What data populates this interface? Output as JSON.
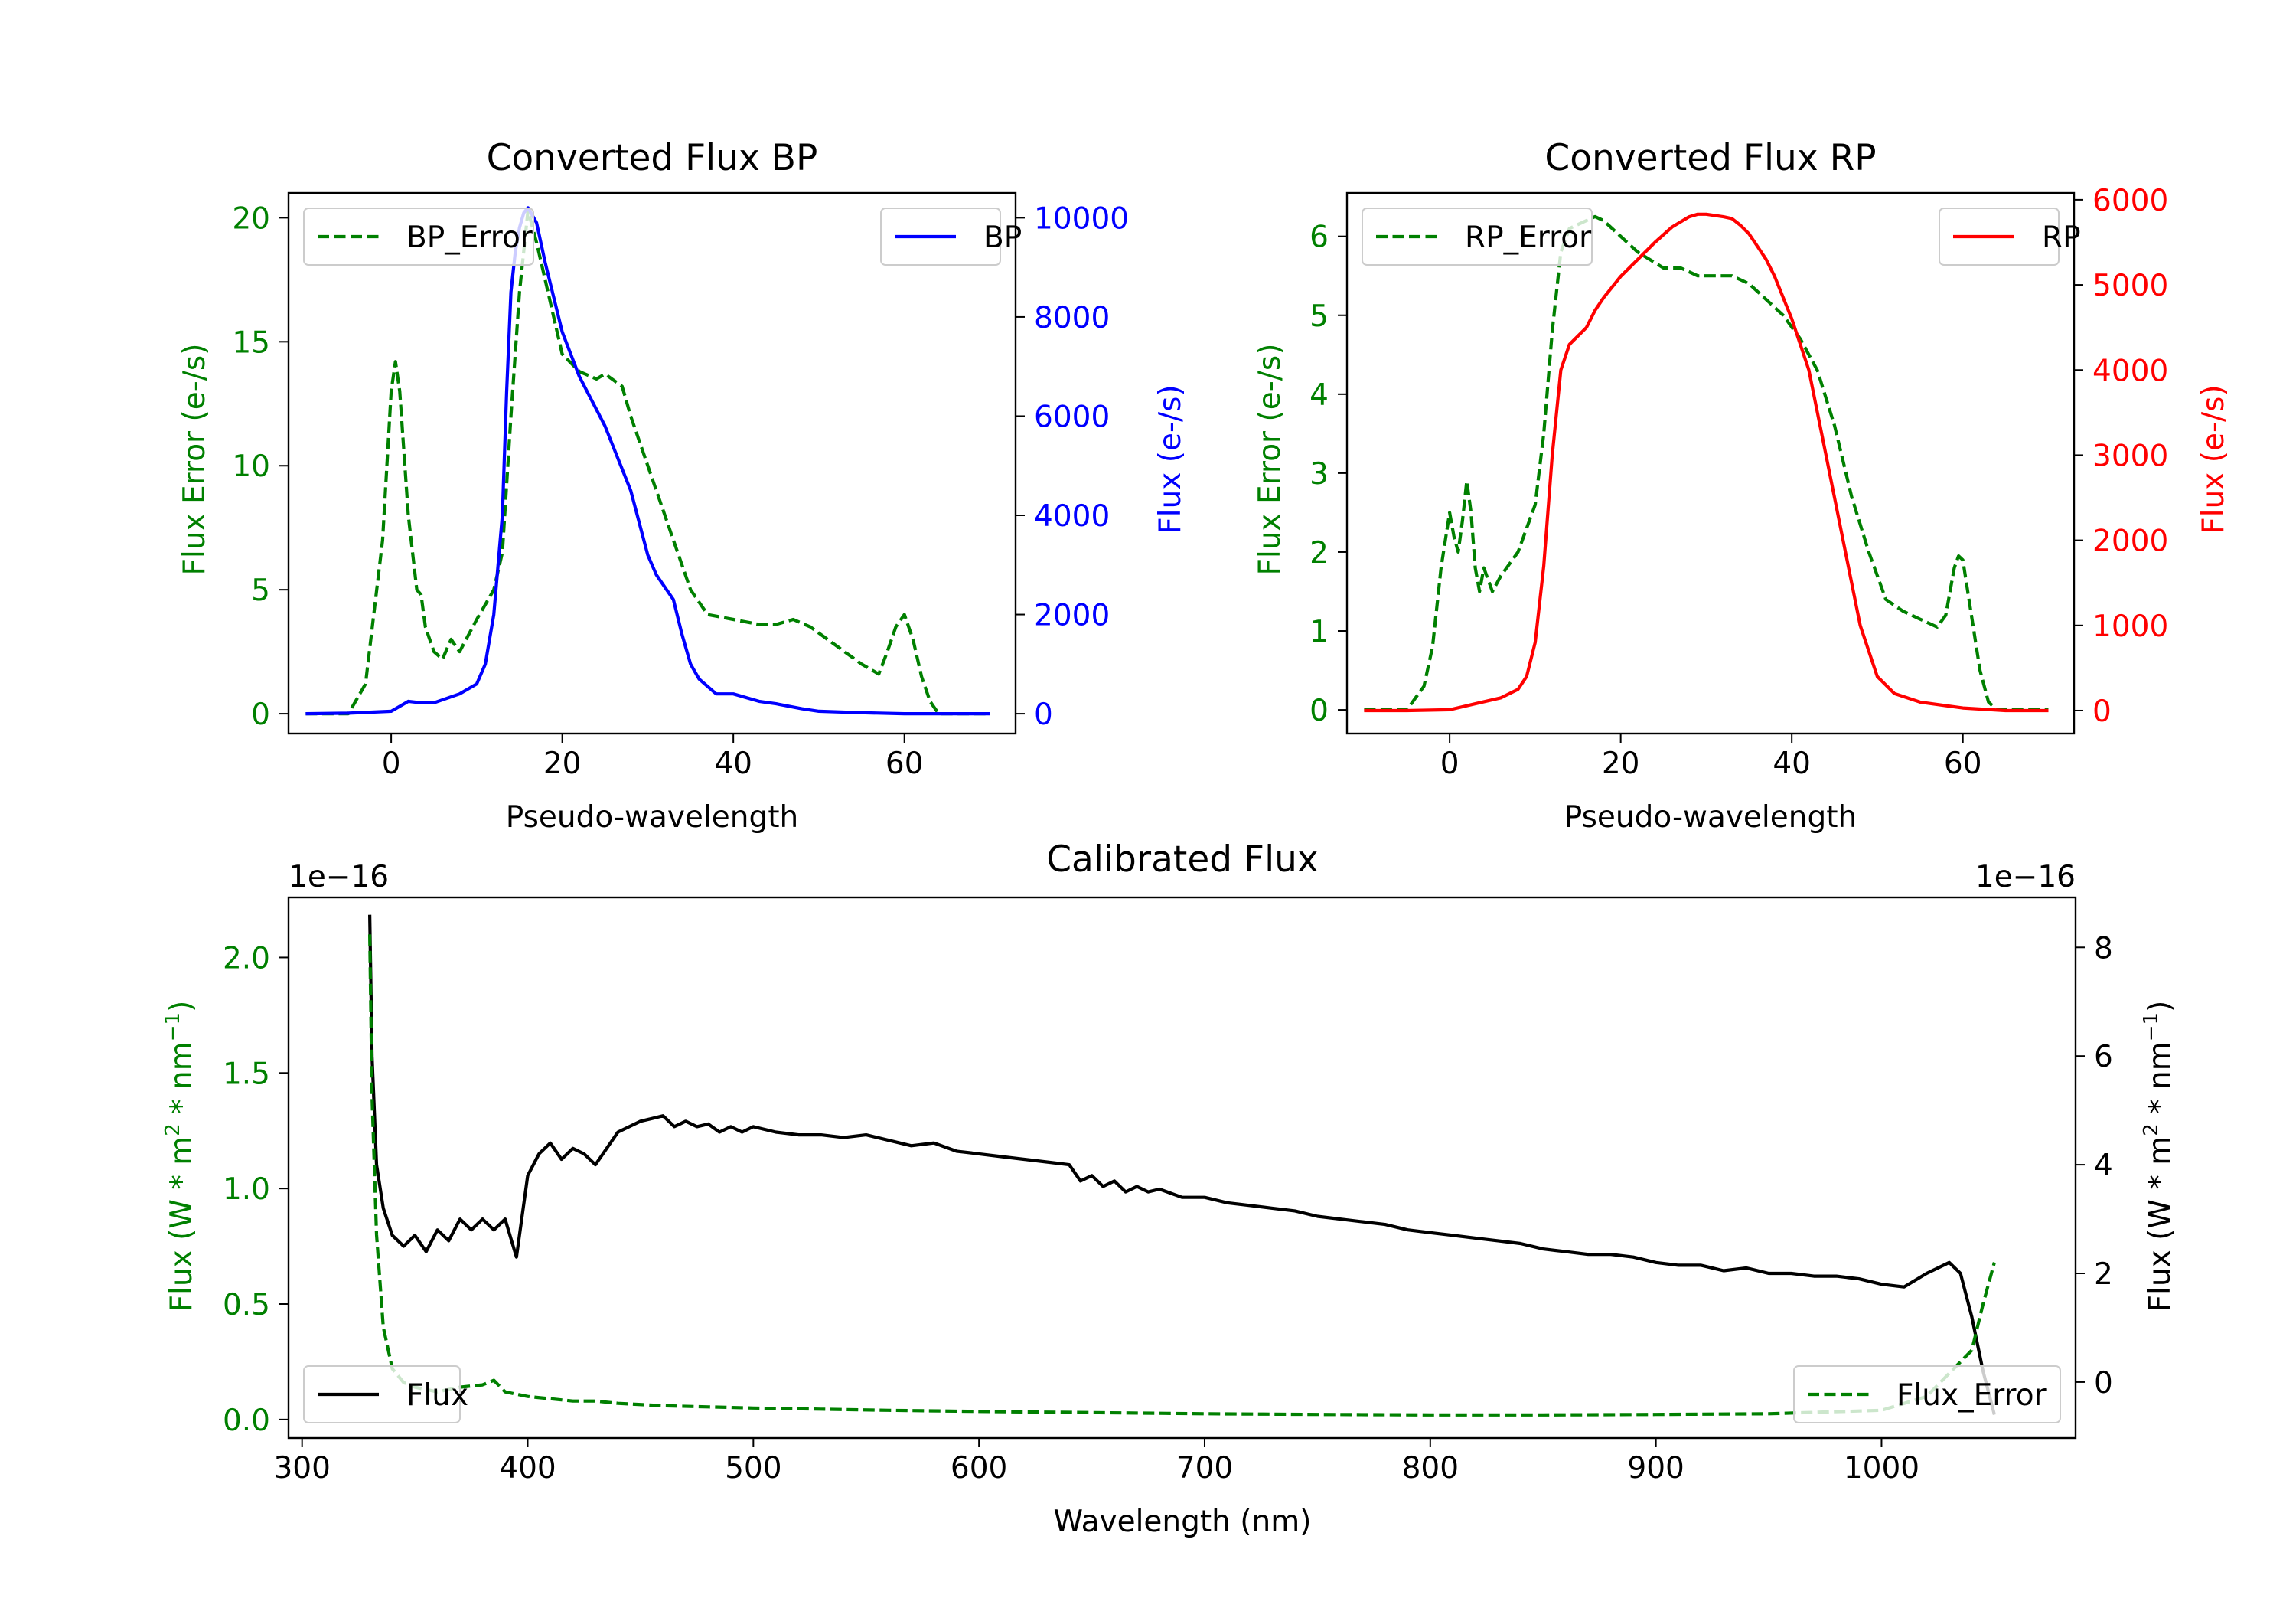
{
  "colors": {
    "green": "#008000",
    "blue": "#0000ff",
    "red": "#ff0000",
    "black": "#000000"
  },
  "chart_data": [
    {
      "type": "line",
      "title": "Converted Flux BP",
      "xlabel": "Pseudo-wavelength",
      "xlim": [
        -12,
        73
      ],
      "xticks": [
        0,
        20,
        40,
        60
      ],
      "left_axis": {
        "label": "Flux Error (e-/s)",
        "color": "#008000",
        "ylim": [
          -0.8,
          21.0
        ],
        "ticks": [
          0,
          5,
          10,
          15,
          20
        ]
      },
      "right_axis": {
        "label": "Flux (e-/s)",
        "color": "#0000ff",
        "ylim": [
          -400,
          10500
        ],
        "ticks": [
          0,
          2000,
          4000,
          6000,
          8000,
          10000
        ]
      },
      "series": [
        {
          "name": "BP_Error",
          "axis": "left",
          "style": "dashed",
          "color": "#008000",
          "x": [
            -10,
            -5,
            -3,
            -1,
            0,
            0.5,
            1,
            2,
            3,
            3.5,
            4,
            5,
            6,
            7,
            8,
            10,
            11,
            12,
            13,
            14,
            15,
            16,
            17,
            18,
            20,
            22,
            24,
            25,
            27,
            28,
            30,
            33,
            35,
            37,
            40,
            43,
            45,
            47,
            49,
            51,
            53,
            55,
            57,
            58,
            59,
            60,
            61,
            62,
            63,
            64,
            70
          ],
          "y": [
            0,
            0,
            1.2,
            7,
            13,
            14.2,
            13,
            8,
            5,
            4.8,
            3.5,
            2.5,
            2.2,
            3,
            2.5,
            3.8,
            4.4,
            5,
            6.5,
            12,
            17,
            20.3,
            19,
            17.5,
            14.5,
            13.8,
            13.5,
            13.7,
            13.2,
            12,
            10,
            7,
            5,
            4,
            3.8,
            3.6,
            3.6,
            3.8,
            3.5,
            3,
            2.5,
            2,
            1.6,
            2.5,
            3.5,
            4,
            3,
            1.5,
            0.5,
            0,
            0
          ]
        },
        {
          "name": "BP",
          "axis": "right",
          "style": "solid",
          "color": "#0000ff",
          "x": [
            -10,
            -5,
            0,
            1,
            2,
            3,
            5,
            8,
            10,
            11,
            12,
            13,
            13.5,
            14,
            14.5,
            15,
            15.5,
            16,
            17,
            18,
            20,
            22,
            25,
            28,
            30,
            31,
            33,
            34,
            35,
            36,
            38,
            40,
            43,
            45,
            48,
            50,
            55,
            60,
            65,
            70
          ],
          "y": [
            0,
            10,
            50,
            150,
            250,
            230,
            220,
            400,
            600,
            1000,
            2000,
            4000,
            6500,
            8500,
            9300,
            9800,
            10100,
            10200,
            9900,
            9100,
            7700,
            6800,
            5800,
            4500,
            3200,
            2800,
            2300,
            1600,
            1000,
            700,
            400,
            400,
            250,
            200,
            100,
            50,
            20,
            0,
            0,
            0
          ]
        }
      ],
      "legends": [
        {
          "entries": [
            "BP_Error"
          ],
          "loc": "upper left"
        },
        {
          "entries": [
            "BP"
          ],
          "loc": "upper right"
        }
      ]
    },
    {
      "type": "line",
      "title": "Converted Flux RP",
      "xlabel": "Pseudo-wavelength",
      "xlim": [
        -12,
        73
      ],
      "xticks": [
        0,
        20,
        40,
        60
      ],
      "left_axis": {
        "label": "Flux Error (e-/s)",
        "color": "#008000",
        "ylim": [
          -0.3,
          6.55
        ],
        "ticks": [
          0,
          1,
          2,
          3,
          4,
          5,
          6
        ]
      },
      "right_axis": {
        "label": "Flux (e-/s)",
        "color": "#ff0000",
        "ylim": [
          -270,
          6080
        ],
        "ticks": [
          0,
          1000,
          2000,
          3000,
          4000,
          5000,
          6000
        ]
      },
      "series": [
        {
          "name": "RP_Error",
          "axis": "left",
          "style": "dashed",
          "color": "#008000",
          "x": [
            -10,
            -5,
            -3,
            -2,
            -1,
            0,
            0.5,
            1,
            1.5,
            2,
            2.5,
            3,
            3.5,
            4,
            5,
            6,
            8,
            10,
            11,
            12,
            13,
            14,
            15,
            17,
            18,
            20,
            22,
            25,
            27,
            29,
            31,
            33,
            35,
            37,
            39,
            41,
            43,
            45,
            47,
            49,
            51,
            53,
            55,
            57,
            58,
            59,
            59.5,
            60,
            61,
            62,
            63,
            64,
            70
          ],
          "y": [
            0,
            0,
            0.3,
            0.8,
            1.8,
            2.5,
            2.2,
            2.0,
            2.4,
            2.9,
            2.5,
            1.8,
            1.5,
            1.8,
            1.5,
            1.7,
            2.0,
            2.6,
            3.5,
            4.8,
            5.8,
            6.1,
            6.15,
            6.25,
            6.2,
            6.0,
            5.8,
            5.6,
            5.6,
            5.5,
            5.5,
            5.5,
            5.4,
            5.2,
            5.0,
            4.7,
            4.3,
            3.6,
            2.7,
            2.0,
            1.4,
            1.25,
            1.15,
            1.05,
            1.2,
            1.8,
            1.95,
            1.9,
            1.2,
            0.5,
            0.1,
            0,
            0
          ]
        },
        {
          "name": "RP",
          "axis": "right",
          "style": "solid",
          "color": "#ff0000",
          "x": [
            -10,
            -5,
            0,
            3,
            6,
            8,
            9,
            10,
            11,
            12,
            13,
            14,
            15,
            16,
            17,
            18,
            20,
            22,
            24,
            26,
            28,
            29,
            30,
            32,
            33,
            34,
            35,
            36,
            37,
            38,
            40,
            42,
            44,
            46,
            48,
            50,
            52,
            55,
            60,
            65,
            70
          ],
          "y": [
            0,
            0,
            10,
            80,
            150,
            250,
            400,
            800,
            1700,
            3000,
            4000,
            4300,
            4400,
            4500,
            4700,
            4850,
            5100,
            5300,
            5500,
            5680,
            5800,
            5830,
            5830,
            5800,
            5780,
            5700,
            5600,
            5450,
            5300,
            5100,
            4600,
            4000,
            3000,
            2000,
            1000,
            400,
            200,
            100,
            30,
            0,
            0
          ]
        }
      ],
      "legends": [
        {
          "entries": [
            "RP_Error"
          ],
          "loc": "upper left"
        },
        {
          "entries": [
            "RP"
          ],
          "loc": "upper right"
        }
      ]
    },
    {
      "type": "line",
      "title": "Calibrated Flux",
      "xlabel": "Wavelength (nm)",
      "xlim": [
        294,
        1086
      ],
      "xticks": [
        300,
        400,
        500,
        600,
        700,
        800,
        900,
        1000
      ],
      "left_axis": {
        "label": "Flux (W * m$^2$ * nm$^{-1}$)",
        "color": "#008000",
        "ylim": [
          -0.08,
          2.26
        ],
        "ticks": [
          "0.0",
          "0.5",
          "1.0",
          "1.5",
          "2.0"
        ],
        "offset_text": "1e−16"
      },
      "right_axis": {
        "label": "Flux (W * m$^2$ * nm$^{-1}$)",
        "color": "#000000",
        "ylim": [
          -1.03,
          8.92
        ],
        "ticks": [
          0,
          2,
          4,
          6,
          8
        ],
        "offset_text": "1e−16"
      },
      "series": [
        {
          "name": "Flux",
          "axis": "right",
          "style": "solid",
          "color": "#000000",
          "x": [
            330,
            331,
            333,
            336,
            340,
            345,
            350,
            355,
            360,
            365,
            370,
            375,
            380,
            385,
            390,
            395,
            400,
            405,
            410,
            415,
            420,
            425,
            430,
            435,
            440,
            445,
            450,
            455,
            460,
            465,
            470,
            475,
            480,
            485,
            490,
            495,
            500,
            510,
            520,
            530,
            540,
            550,
            560,
            570,
            580,
            590,
            600,
            610,
            620,
            630,
            640,
            645,
            650,
            655,
            660,
            665,
            670,
            675,
            680,
            690,
            700,
            710,
            720,
            730,
            740,
            750,
            760,
            770,
            780,
            790,
            800,
            810,
            820,
            830,
            840,
            850,
            860,
            870,
            880,
            890,
            900,
            910,
            920,
            930,
            940,
            950,
            960,
            970,
            980,
            990,
            1000,
            1010,
            1020,
            1030,
            1035,
            1040,
            1045,
            1050
          ],
          "y": [
            8.6,
            6,
            4,
            3.2,
            2.7,
            2.5,
            2.7,
            2.4,
            2.8,
            2.6,
            3,
            2.8,
            3,
            2.8,
            3,
            2.3,
            3.8,
            4.2,
            4.4,
            4.1,
            4.3,
            4.2,
            4.0,
            4.3,
            4.6,
            4.7,
            4.8,
            4.85,
            4.9,
            4.7,
            4.8,
            4.7,
            4.75,
            4.6,
            4.7,
            4.6,
            4.7,
            4.6,
            4.55,
            4.55,
            4.5,
            4.55,
            4.45,
            4.35,
            4.4,
            4.25,
            4.2,
            4.15,
            4.1,
            4.05,
            4.0,
            3.7,
            3.8,
            3.6,
            3.7,
            3.5,
            3.6,
            3.5,
            3.55,
            3.4,
            3.4,
            3.3,
            3.25,
            3.2,
            3.15,
            3.05,
            3.0,
            2.95,
            2.9,
            2.8,
            2.75,
            2.7,
            2.65,
            2.6,
            2.55,
            2.45,
            2.4,
            2.35,
            2.35,
            2.3,
            2.2,
            2.15,
            2.15,
            2.05,
            2.1,
            2.0,
            2.0,
            1.95,
            1.95,
            1.9,
            1.8,
            1.75,
            2.0,
            2.2,
            2.0,
            1.2,
            0.2,
            -0.6
          ]
        },
        {
          "name": "Flux_Error",
          "axis": "left",
          "style": "dashed",
          "color": "#008000",
          "x": [
            330,
            331,
            333,
            336,
            340,
            345,
            350,
            360,
            370,
            380,
            385,
            390,
            395,
            400,
            410,
            420,
            430,
            440,
            460,
            480,
            500,
            530,
            560,
            600,
            650,
            700,
            750,
            800,
            850,
            900,
            950,
            1000,
            1020,
            1030,
            1040,
            1045,
            1050
          ],
          "y": [
            2.1,
            1.4,
            0.8,
            0.4,
            0.22,
            0.16,
            0.14,
            0.12,
            0.14,
            0.15,
            0.17,
            0.12,
            0.11,
            0.1,
            0.09,
            0.08,
            0.08,
            0.07,
            0.06,
            0.055,
            0.05,
            0.045,
            0.04,
            0.035,
            0.03,
            0.025,
            0.022,
            0.02,
            0.02,
            0.022,
            0.025,
            0.04,
            0.1,
            0.2,
            0.3,
            0.5,
            0.68
          ]
        }
      ],
      "legends": [
        {
          "entries": [
            "Flux"
          ],
          "loc": "lower left"
        },
        {
          "entries": [
            "Flux_Error"
          ],
          "loc": "lower right"
        }
      ]
    }
  ]
}
